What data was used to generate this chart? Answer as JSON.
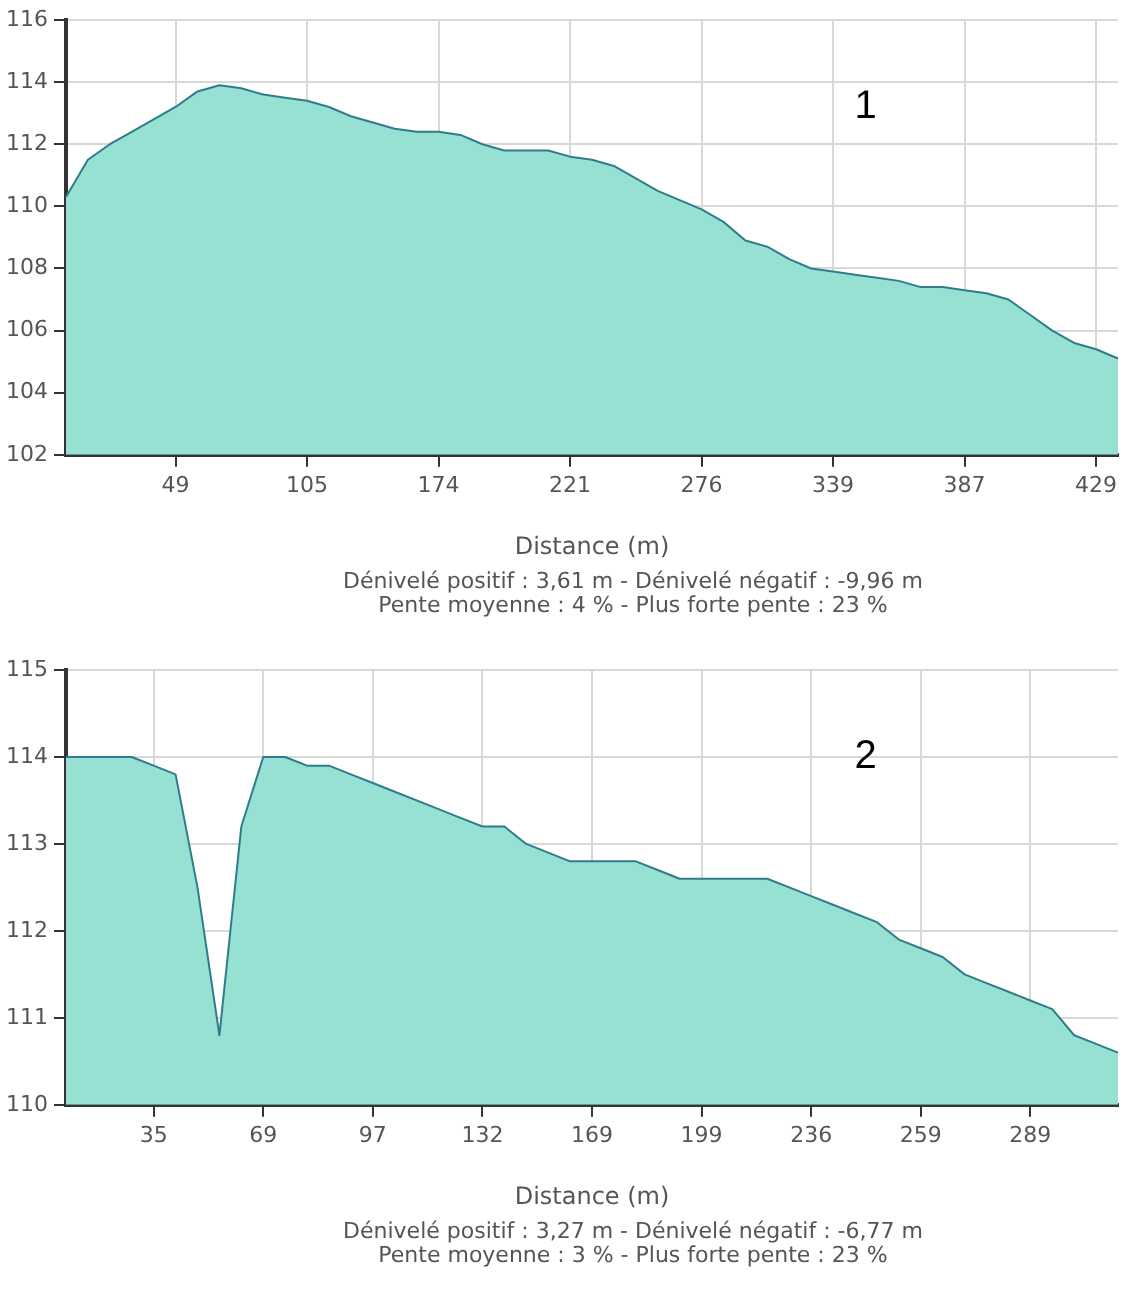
{
  "chart_data": [
    {
      "type": "area",
      "xlabel": "Distance (m)",
      "categories": [
        null,
        null,
        null,
        null,
        null,
        "49",
        null,
        null,
        null,
        null,
        null,
        "105",
        null,
        null,
        null,
        null,
        null,
        "174",
        null,
        null,
        null,
        null,
        null,
        "221",
        null,
        null,
        null,
        null,
        null,
        "276",
        null,
        null,
        null,
        null,
        null,
        "339",
        null,
        null,
        null,
        null,
        null,
        "387",
        null,
        null,
        null,
        null,
        null,
        "429",
        null
      ],
      "series": [
        {
          "color": "#96e0d4",
          "values": [
            110.3,
            111.5,
            112.0,
            112.4,
            112.8,
            113.2,
            113.7,
            113.9,
            113.8,
            113.6,
            113.5,
            113.4,
            113.2,
            112.9,
            112.7,
            112.5,
            112.4,
            112.4,
            112.3,
            112.0,
            111.8,
            111.8,
            111.8,
            111.6,
            111.5,
            111.3,
            110.9,
            110.5,
            110.2,
            109.9,
            109.5,
            108.9,
            108.7,
            108.3,
            108.0,
            107.9,
            107.8,
            107.7,
            107.6,
            107.4,
            107.4,
            107.3,
            107.2,
            107.0,
            106.5,
            106.0,
            105.6,
            105.4,
            105.1
          ]
        }
      ],
      "ylim": [
        102,
        116
      ],
      "yticks": [
        102,
        104,
        106,
        108,
        110,
        112,
        114,
        116
      ],
      "grid": true,
      "legend": false,
      "annotations": [
        "1",
        "Dénivelé positif : 3,61 m - Dénivelé négatif : -9,96 m",
        "Pente moyenne : 4 % - Plus forte pente : 23 %"
      ]
    },
    {
      "type": "area",
      "xlabel": "Distance (m)",
      "categories": [
        null,
        null,
        null,
        null,
        "35",
        null,
        null,
        null,
        null,
        "69",
        null,
        null,
        null,
        null,
        "97",
        null,
        null,
        null,
        null,
        "132",
        null,
        null,
        null,
        null,
        "169",
        null,
        null,
        null,
        null,
        "199",
        null,
        null,
        null,
        null,
        "236",
        null,
        null,
        null,
        null,
        "259",
        null,
        null,
        null,
        null,
        "289",
        null,
        null,
        null,
        null
      ],
      "series": [
        {
          "color": "#96e0d4",
          "values": [
            114.0,
            114.0,
            114.0,
            114.0,
            113.9,
            113.8,
            112.5,
            110.8,
            113.2,
            114.0,
            114.0,
            113.9,
            113.9,
            113.8,
            113.7,
            113.6,
            113.5,
            113.4,
            113.3,
            113.2,
            113.2,
            113.0,
            112.9,
            112.8,
            112.8,
            112.8,
            112.8,
            112.7,
            112.6,
            112.6,
            112.6,
            112.6,
            112.6,
            112.5,
            112.4,
            112.3,
            112.2,
            112.1,
            111.9,
            111.8,
            111.7,
            111.5,
            111.4,
            111.3,
            111.2,
            111.1,
            110.8,
            110.7,
            110.6
          ]
        }
      ],
      "ylim": [
        110,
        115
      ],
      "yticks": [
        110,
        111,
        112,
        113,
        114,
        115
      ],
      "grid": true,
      "legend": false,
      "annotations": [
        "2",
        "Dénivelé positif : 3,27 m - Dénivelé négatif : -6,77 m",
        "Pente moyenne : 3 % - Plus forte pente : 23 %"
      ]
    }
  ]
}
